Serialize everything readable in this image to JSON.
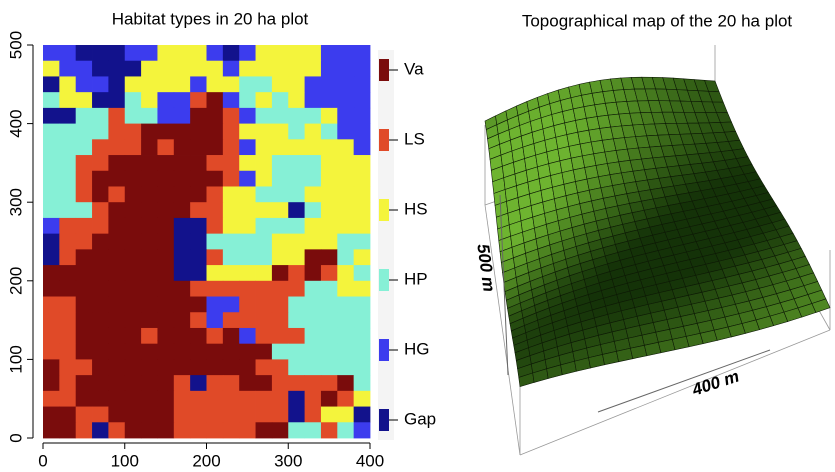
{
  "chart_data": [
    {
      "type": "heatmap",
      "title": "Habitat types in 20 ha plot",
      "categories": [
        "Va",
        "LS",
        "HS",
        "HP",
        "HG",
        "Gap"
      ],
      "colors": [
        "#7a0c0c",
        "#e04a28",
        "#f4f43c",
        "#86f0d6",
        "#3c3cee",
        "#12128c"
      ],
      "xlim": [
        0,
        400
      ],
      "ylim": [
        0,
        500
      ],
      "xticks": [
        0,
        100,
        200,
        300,
        400
      ],
      "yticks": [
        0,
        100,
        200,
        300,
        400,
        500
      ],
      "grid": [
        [
          4,
          4,
          5,
          5,
          5,
          4,
          4,
          2,
          2,
          2,
          4,
          5,
          4,
          2,
          2,
          2,
          2,
          4,
          4,
          4
        ],
        [
          2,
          4,
          4,
          5,
          5,
          5,
          2,
          2,
          2,
          2,
          2,
          4,
          2,
          2,
          2,
          2,
          2,
          4,
          4,
          4
        ],
        [
          5,
          2,
          4,
          4,
          5,
          2,
          2,
          2,
          2,
          4,
          2,
          2,
          3,
          3,
          2,
          2,
          4,
          4,
          4,
          4
        ],
        [
          3,
          2,
          2,
          5,
          5,
          3,
          2,
          4,
          4,
          1,
          0,
          4,
          3,
          2,
          3,
          2,
          4,
          4,
          4,
          4
        ],
        [
          5,
          5,
          3,
          3,
          1,
          3,
          3,
          4,
          4,
          0,
          0,
          1,
          4,
          3,
          3,
          3,
          3,
          2,
          4,
          4
        ],
        [
          3,
          3,
          3,
          3,
          1,
          1,
          0,
          0,
          0,
          0,
          0,
          1,
          2,
          2,
          2,
          3,
          2,
          3,
          4,
          4
        ],
        [
          3,
          3,
          3,
          1,
          1,
          1,
          0,
          1,
          0,
          0,
          0,
          1,
          4,
          2,
          2,
          2,
          2,
          2,
          2,
          4
        ],
        [
          3,
          3,
          1,
          1,
          0,
          0,
          0,
          0,
          0,
          0,
          1,
          1,
          2,
          2,
          3,
          3,
          3,
          2,
          2,
          2
        ],
        [
          3,
          3,
          1,
          0,
          0,
          0,
          0,
          0,
          0,
          0,
          0,
          1,
          4,
          2,
          3,
          3,
          3,
          2,
          2,
          2
        ],
        [
          3,
          3,
          1,
          0,
          1,
          0,
          0,
          0,
          0,
          0,
          1,
          2,
          2,
          3,
          3,
          3,
          2,
          2,
          2,
          2
        ],
        [
          3,
          3,
          3,
          1,
          0,
          0,
          0,
          0,
          0,
          1,
          1,
          2,
          2,
          2,
          2,
          5,
          3,
          2,
          2,
          2
        ],
        [
          4,
          1,
          1,
          1,
          0,
          0,
          0,
          0,
          5,
          5,
          1,
          2,
          2,
          3,
          3,
          3,
          2,
          2,
          2,
          2
        ],
        [
          5,
          1,
          1,
          0,
          0,
          0,
          0,
          0,
          5,
          5,
          3,
          3,
          3,
          3,
          2,
          2,
          2,
          2,
          3,
          3
        ],
        [
          5,
          1,
          0,
          0,
          0,
          0,
          0,
          0,
          5,
          5,
          1,
          3,
          3,
          3,
          2,
          2,
          0,
          0,
          3,
          2
        ],
        [
          0,
          0,
          0,
          0,
          0,
          0,
          0,
          0,
          5,
          5,
          2,
          2,
          2,
          2,
          0,
          1,
          0,
          1,
          2,
          3
        ],
        [
          0,
          0,
          0,
          0,
          0,
          0,
          0,
          0,
          0,
          1,
          1,
          1,
          1,
          1,
          1,
          1,
          3,
          3,
          2,
          2
        ],
        [
          1,
          1,
          0,
          0,
          0,
          0,
          0,
          0,
          0,
          0,
          4,
          4,
          1,
          1,
          1,
          3,
          3,
          3,
          3,
          3
        ],
        [
          1,
          1,
          0,
          0,
          0,
          0,
          0,
          0,
          0,
          1,
          4,
          1,
          1,
          1,
          1,
          3,
          3,
          3,
          3,
          3
        ],
        [
          1,
          1,
          0,
          0,
          0,
          0,
          1,
          0,
          0,
          0,
          1,
          0,
          4,
          1,
          1,
          1,
          3,
          3,
          3,
          3
        ],
        [
          1,
          1,
          0,
          0,
          0,
          0,
          0,
          0,
          0,
          0,
          0,
          0,
          0,
          0,
          3,
          3,
          3,
          3,
          3,
          3
        ],
        [
          0,
          1,
          1,
          0,
          0,
          0,
          0,
          0,
          0,
          0,
          0,
          0,
          0,
          1,
          1,
          3,
          3,
          3,
          3,
          3
        ],
        [
          0,
          1,
          0,
          0,
          0,
          0,
          0,
          0,
          1,
          5,
          1,
          1,
          0,
          0,
          1,
          1,
          1,
          1,
          0,
          3
        ],
        [
          1,
          1,
          0,
          0,
          0,
          0,
          0,
          0,
          1,
          1,
          1,
          1,
          1,
          1,
          1,
          5,
          1,
          0,
          1,
          2
        ],
        [
          0,
          0,
          1,
          1,
          0,
          0,
          0,
          0,
          1,
          1,
          1,
          1,
          1,
          1,
          1,
          5,
          1,
          2,
          2,
          5
        ],
        [
          0,
          0,
          1,
          5,
          1,
          0,
          0,
          0,
          1,
          1,
          1,
          1,
          1,
          0,
          0,
          3,
          3,
          1,
          3,
          4
        ]
      ]
    },
    {
      "type": "surface",
      "title": "Topographical map of the 20 ha plot",
      "xlabel": "400 m",
      "ylabel": "500 m"
    }
  ]
}
